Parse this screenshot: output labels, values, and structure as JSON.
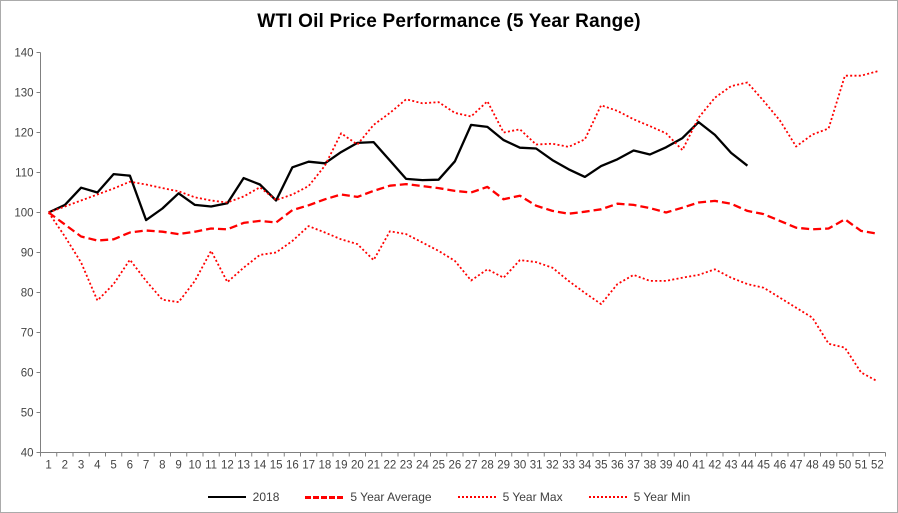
{
  "chart_data": {
    "type": "line",
    "title": "WTI Oil Price Performance (5 Year Range)",
    "xlabel": "",
    "ylabel": "",
    "ylim": [
      40,
      140
    ],
    "y_ticks": [
      40,
      50,
      60,
      70,
      80,
      90,
      100,
      110,
      120,
      130,
      140
    ],
    "x_ticks": [
      1,
      2,
      3,
      4,
      5,
      6,
      7,
      8,
      9,
      10,
      11,
      12,
      13,
      14,
      15,
      16,
      17,
      18,
      19,
      20,
      21,
      22,
      23,
      24,
      25,
      26,
      27,
      28,
      29,
      30,
      31,
      32,
      33,
      34,
      35,
      36,
      37,
      38,
      39,
      40,
      41,
      42,
      43,
      44,
      45,
      46,
      47,
      48,
      49,
      50,
      51,
      52
    ],
    "grid": false,
    "legend_position": "bottom",
    "series": [
      {
        "name": "2018",
        "color": "#000000",
        "style": "solid",
        "width": 2.3,
        "values": [
          100,
          101.9,
          106.2,
          105,
          109.6,
          109.2,
          98.1,
          101,
          104.8,
          101.9,
          101.5,
          102.3,
          108.6,
          107,
          103,
          111.3,
          112.7,
          112.3,
          115.1,
          117.4,
          117.6,
          113,
          108.4,
          108.1,
          108.2,
          112.8,
          121.9,
          121.4,
          118.1,
          116.2,
          116,
          113.1,
          110.8,
          108.9,
          111.6,
          113.3,
          115.5,
          114.5,
          116.3,
          118.6,
          122.6,
          119.4,
          114.9,
          111.7
        ]
      },
      {
        "name": "5 Year Average",
        "color": "#ff0000",
        "style": "dashed",
        "width": 2.3,
        "values": [
          100,
          97,
          94,
          93,
          93.3,
          95,
          95.5,
          95.2,
          94.6,
          95.2,
          96,
          95.8,
          97.4,
          97.9,
          97.5,
          100.6,
          101.8,
          103.3,
          104.5,
          103.9,
          105.4,
          106.7,
          107.1,
          106.6,
          106.1,
          105.4,
          105,
          106.4,
          103.3,
          104.2,
          101.7,
          100.4,
          99.7,
          100.2,
          100.8,
          102.2,
          101.9,
          101.1,
          100,
          101.2,
          102.5,
          102.9,
          102.2,
          100.4,
          99.6,
          97.9,
          96.2,
          95.8,
          96,
          98.3,
          95.4,
          94.7
        ]
      },
      {
        "name": "5 Year Max",
        "color": "#ff0000",
        "style": "dotted",
        "width": 1.8,
        "values": [
          100,
          101.5,
          103,
          104.5,
          106,
          107.7,
          107,
          106.1,
          105.3,
          103.8,
          103,
          102.5,
          104,
          106.3,
          103.1,
          104.5,
          106.6,
          111.7,
          119.8,
          117,
          121.9,
          124.9,
          128.3,
          127.3,
          127.6,
          124.9,
          124,
          127.8,
          120,
          120.8,
          117,
          117.2,
          116.4,
          118.3,
          126.8,
          125.4,
          123.3,
          121.6,
          119.8,
          115.6,
          123.7,
          128.7,
          131.6,
          132.5,
          127.9,
          123,
          116.5,
          119.5,
          121,
          134.2,
          134.2,
          135.3
        ]
      },
      {
        "name": "5 Year Min",
        "color": "#ff0000",
        "style": "dotted",
        "width": 1.8,
        "values": [
          100,
          94,
          87.5,
          78,
          82.1,
          88.2,
          82.9,
          78.2,
          77.6,
          82.9,
          90.4,
          82.6,
          86.2,
          89.4,
          90,
          92.9,
          96.6,
          95,
          93.3,
          92.1,
          88.1,
          95.3,
          94.6,
          92.5,
          90.4,
          87.9,
          83,
          85.8,
          83.7,
          88.1,
          87.6,
          86.2,
          82.9,
          79.9,
          77.1,
          82.1,
          84.4,
          82.9,
          82.9,
          83.7,
          84.4,
          85.8,
          83.7,
          82.1,
          81.2,
          78.7,
          76.2,
          73.7,
          67.2,
          66.2,
          60,
          57.8
        ]
      }
    ]
  },
  "colors": {
    "axis_line": "#808080",
    "tick_label": "#444444",
    "title": "#000000",
    "background": "#ffffff"
  }
}
